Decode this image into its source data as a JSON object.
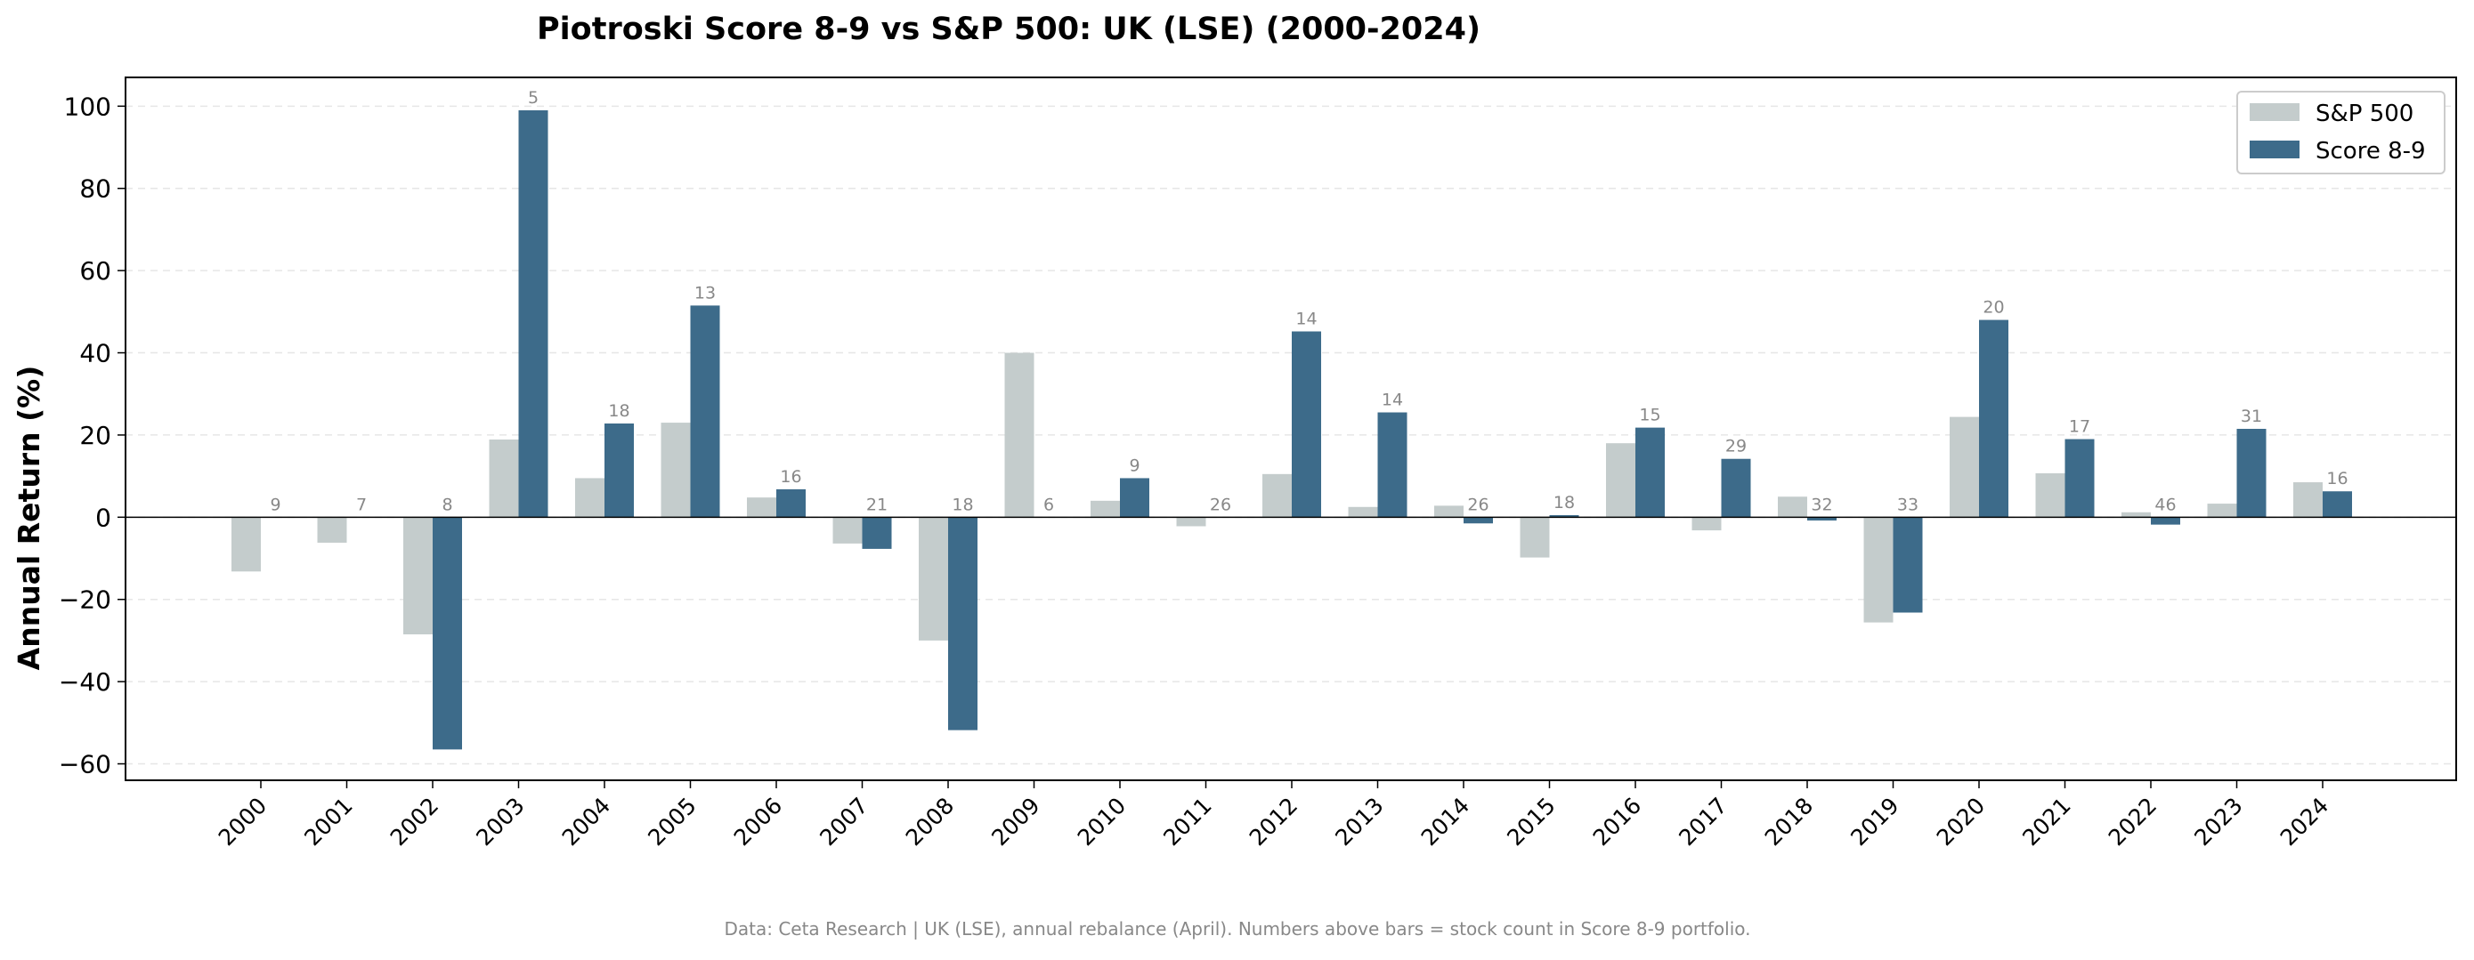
{
  "chart_data": {
    "type": "bar",
    "title": "Piotroski Score 8-9 vs S&P 500: UK (LSE) (2000-2024)",
    "xlabel": "",
    "ylabel": "Annual Return (%)",
    "ylim": [
      -64,
      107
    ],
    "yticks": [
      -60,
      -40,
      -20,
      0,
      20,
      40,
      60,
      80,
      100
    ],
    "ytick_labels": [
      "−60",
      "−40",
      "−20",
      "0",
      "20",
      "40",
      "60",
      "80",
      "100"
    ],
    "grid": "horizontal dashed",
    "legend_position": "top-right",
    "categories": [
      "2000",
      "2001",
      "2002",
      "2003",
      "2004",
      "2005",
      "2006",
      "2007",
      "2008",
      "2009",
      "2010",
      "2011",
      "2012",
      "2013",
      "2014",
      "2015",
      "2016",
      "2017",
      "2018",
      "2019",
      "2020",
      "2021",
      "2022",
      "2023",
      "2024"
    ],
    "series": [
      {
        "name": "S&P 500",
        "color": "#c4cccc",
        "values": [
          -13.2,
          -6.2,
          -28.5,
          18.9,
          9.5,
          23.0,
          4.8,
          -6.4,
          -30.0,
          40.0,
          4.0,
          -2.2,
          10.5,
          2.5,
          2.8,
          -9.8,
          18.0,
          -3.2,
          5.0,
          -25.6,
          24.4,
          10.7,
          1.2,
          3.3,
          8.5
        ]
      },
      {
        "name": "Score 8-9",
        "color": "#3d6b8a",
        "values": [
          0,
          0,
          -56.5,
          99.0,
          22.8,
          51.5,
          6.8,
          -7.7,
          -51.8,
          0,
          9.5,
          0,
          45.2,
          25.5,
          -1.5,
          0.5,
          21.8,
          14.2,
          -0.8,
          -23.2,
          48.0,
          19.0,
          -1.8,
          21.5,
          6.3
        ]
      }
    ],
    "stock_counts": [
      "9",
      "7",
      "8",
      "5",
      "18",
      "13",
      "16",
      "21",
      "18",
      "6",
      "9",
      "26",
      "14",
      "14",
      "26",
      "18",
      "15",
      "29",
      "32",
      "33",
      "20",
      "17",
      "46",
      "31",
      "16"
    ],
    "footnote": "Data: Ceta Research | UK (LSE), annual rebalance (April). Numbers above bars = stock count in Score 8-9 portfolio."
  }
}
